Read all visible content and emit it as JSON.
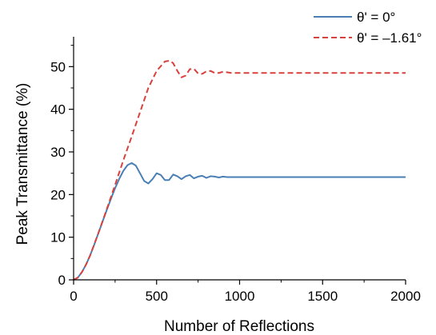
{
  "chart_data": {
    "type": "line",
    "xlabel": "Number of Reflections",
    "ylabel": "Peak Transmittance (%)",
    "xlim": [
      0,
      2000
    ],
    "ylim": [
      0,
      57
    ],
    "xticks": [
      0,
      500,
      1000,
      1500,
      2000
    ],
    "xtick_labels": [
      "0",
      "500",
      "1000",
      "1500",
      "2000"
    ],
    "yticks": [
      0,
      10,
      20,
      30,
      40,
      50
    ],
    "ytick_labels": [
      "0",
      "10",
      "20",
      "30",
      "40",
      "50"
    ],
    "grid": false,
    "legend_position": "top-right",
    "series": [
      {
        "name": "θ' = 0°",
        "color": "#4a7fb5",
        "style": "solid",
        "x": [
          0,
          25,
          50,
          75,
          100,
          125,
          150,
          175,
          200,
          225,
          250,
          275,
          300,
          325,
          350,
          375,
          400,
          425,
          450,
          475,
          500,
          525,
          550,
          575,
          600,
          625,
          650,
          675,
          700,
          725,
          750,
          775,
          800,
          825,
          850,
          875,
          900,
          925,
          950,
          1000,
          1100,
          1200,
          1400,
          1600,
          1800,
          2000
        ],
        "y": [
          0,
          0.5,
          1.8,
          3.6,
          5.8,
          8.3,
          11.0,
          13.7,
          16.4,
          19.0,
          21.5,
          23.7,
          25.6,
          26.9,
          27.4,
          26.8,
          25.0,
          23.2,
          22.6,
          23.6,
          25.0,
          24.6,
          23.4,
          23.4,
          24.7,
          24.3,
          23.6,
          24.3,
          24.6,
          23.8,
          24.2,
          24.4,
          23.9,
          24.3,
          24.2,
          24.0,
          24.2,
          24.1,
          24.1,
          24.1,
          24.1,
          24.1,
          24.1,
          24.1,
          24.1,
          24.1
        ]
      },
      {
        "name": "θ' = –1.61°",
        "color": "#d9413c",
        "style": "dashed",
        "x": [
          0,
          25,
          50,
          75,
          100,
          150,
          200,
          250,
          300,
          350,
          400,
          450,
          500,
          550,
          580,
          600,
          625,
          650,
          675,
          700,
          725,
          750,
          775,
          800,
          825,
          850,
          875,
          900,
          950,
          1000,
          1100,
          1200,
          1400,
          1600,
          1800,
          2000
        ],
        "y": [
          0,
          0.5,
          1.8,
          3.6,
          5.8,
          11.0,
          16.6,
          22.3,
          28.1,
          33.6,
          39.3,
          45.0,
          49.0,
          51.2,
          51.4,
          50.8,
          49.0,
          47.5,
          47.9,
          49.4,
          49.5,
          48.4,
          48.3,
          48.9,
          49.0,
          48.5,
          48.5,
          48.8,
          48.5,
          48.5,
          48.5,
          48.5,
          48.5,
          48.5,
          48.5,
          48.5
        ]
      }
    ]
  }
}
